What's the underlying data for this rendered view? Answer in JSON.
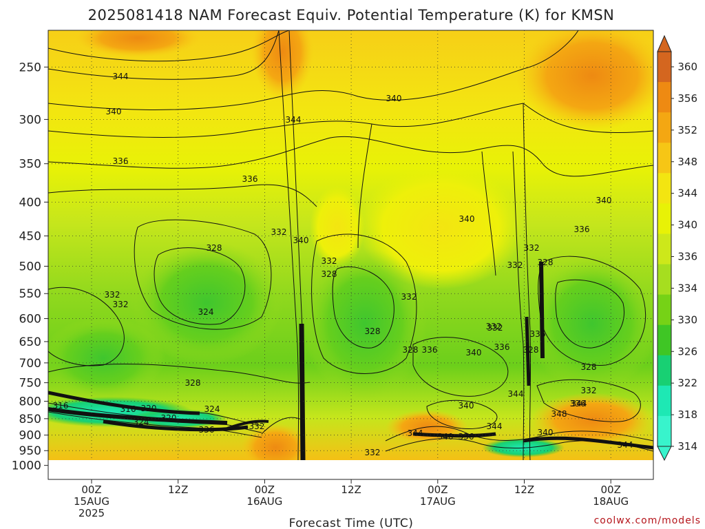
{
  "chart_data": {
    "type": "heatmap",
    "title": "2025081418 NAM Forecast Equiv. Potential Temperature (K) for KMSN",
    "xlabel": "Forecast Time (UTC)",
    "ylabel": "",
    "y_scale": "log-pressure",
    "y_ticks": [
      "250",
      "300",
      "350",
      "400",
      "450",
      "500",
      "550",
      "600",
      "650",
      "700",
      "750",
      "800",
      "850",
      "900",
      "950",
      "1000"
    ],
    "x_ticks": [
      {
        "line1": "00Z",
        "line2": "15AUG",
        "line3": "2025"
      },
      {
        "line1": "12Z",
        "line2": "",
        "line3": ""
      },
      {
        "line1": "00Z",
        "line2": "16AUG",
        "line3": ""
      },
      {
        "line1": "12Z",
        "line2": "",
        "line3": ""
      },
      {
        "line1": "00Z",
        "line2": "17AUG",
        "line3": ""
      },
      {
        "line1": "12Z",
        "line2": "",
        "line3": ""
      },
      {
        "line1": "00Z",
        "line2": "18AUG",
        "line3": ""
      }
    ],
    "colorbar": {
      "ticks": [
        "360",
        "356",
        "352",
        "348",
        "344",
        "340",
        "336",
        "334",
        "330",
        "326",
        "322",
        "318",
        "314"
      ],
      "colors": [
        "#d4661f",
        "#ee8a12",
        "#f4a712",
        "#f6c615",
        "#f3e511",
        "#e8f206",
        "#cde81a",
        "#a6de1f",
        "#76d216",
        "#3fc625",
        "#18d073",
        "#1ee8b4",
        "#38f4cc"
      ]
    },
    "contour_labels": [
      {
        "text": "344"
      },
      {
        "text": "340"
      },
      {
        "text": "336"
      },
      {
        "text": "336"
      },
      {
        "text": "344"
      },
      {
        "text": "340"
      },
      {
        "text": "332"
      },
      {
        "text": "340"
      },
      {
        "text": "328"
      },
      {
        "text": "332"
      },
      {
        "text": "328"
      },
      {
        "text": "332"
      },
      {
        "text": "332"
      },
      {
        "text": "324"
      },
      {
        "text": "328"
      },
      {
        "text": "332"
      },
      {
        "text": "340"
      },
      {
        "text": "332"
      },
      {
        "text": "340"
      },
      {
        "text": "328"
      },
      {
        "text": "336"
      },
      {
        "text": "336"
      },
      {
        "text": "340"
      },
      {
        "text": "336"
      },
      {
        "text": "332"
      },
      {
        "text": "328"
      },
      {
        "text": "332"
      },
      {
        "text": "332"
      },
      {
        "text": "336"
      },
      {
        "text": "328"
      },
      {
        "text": "328"
      },
      {
        "text": "332"
      },
      {
        "text": "336"
      },
      {
        "text": "344"
      },
      {
        "text": "340"
      },
      {
        "text": "344"
      },
      {
        "text": "348"
      },
      {
        "text": "316"
      },
      {
        "text": "328"
      },
      {
        "text": "316"
      },
      {
        "text": "320"
      },
      {
        "text": "324"
      },
      {
        "text": "324"
      },
      {
        "text": "320"
      },
      {
        "text": "336"
      },
      {
        "text": "332"
      },
      {
        "text": "344"
      },
      {
        "text": "340"
      },
      {
        "text": "336"
      },
      {
        "text": "344"
      },
      {
        "text": "332"
      },
      {
        "text": "340"
      },
      {
        "text": "344"
      }
    ]
  },
  "credit": "coolwx.com/models"
}
